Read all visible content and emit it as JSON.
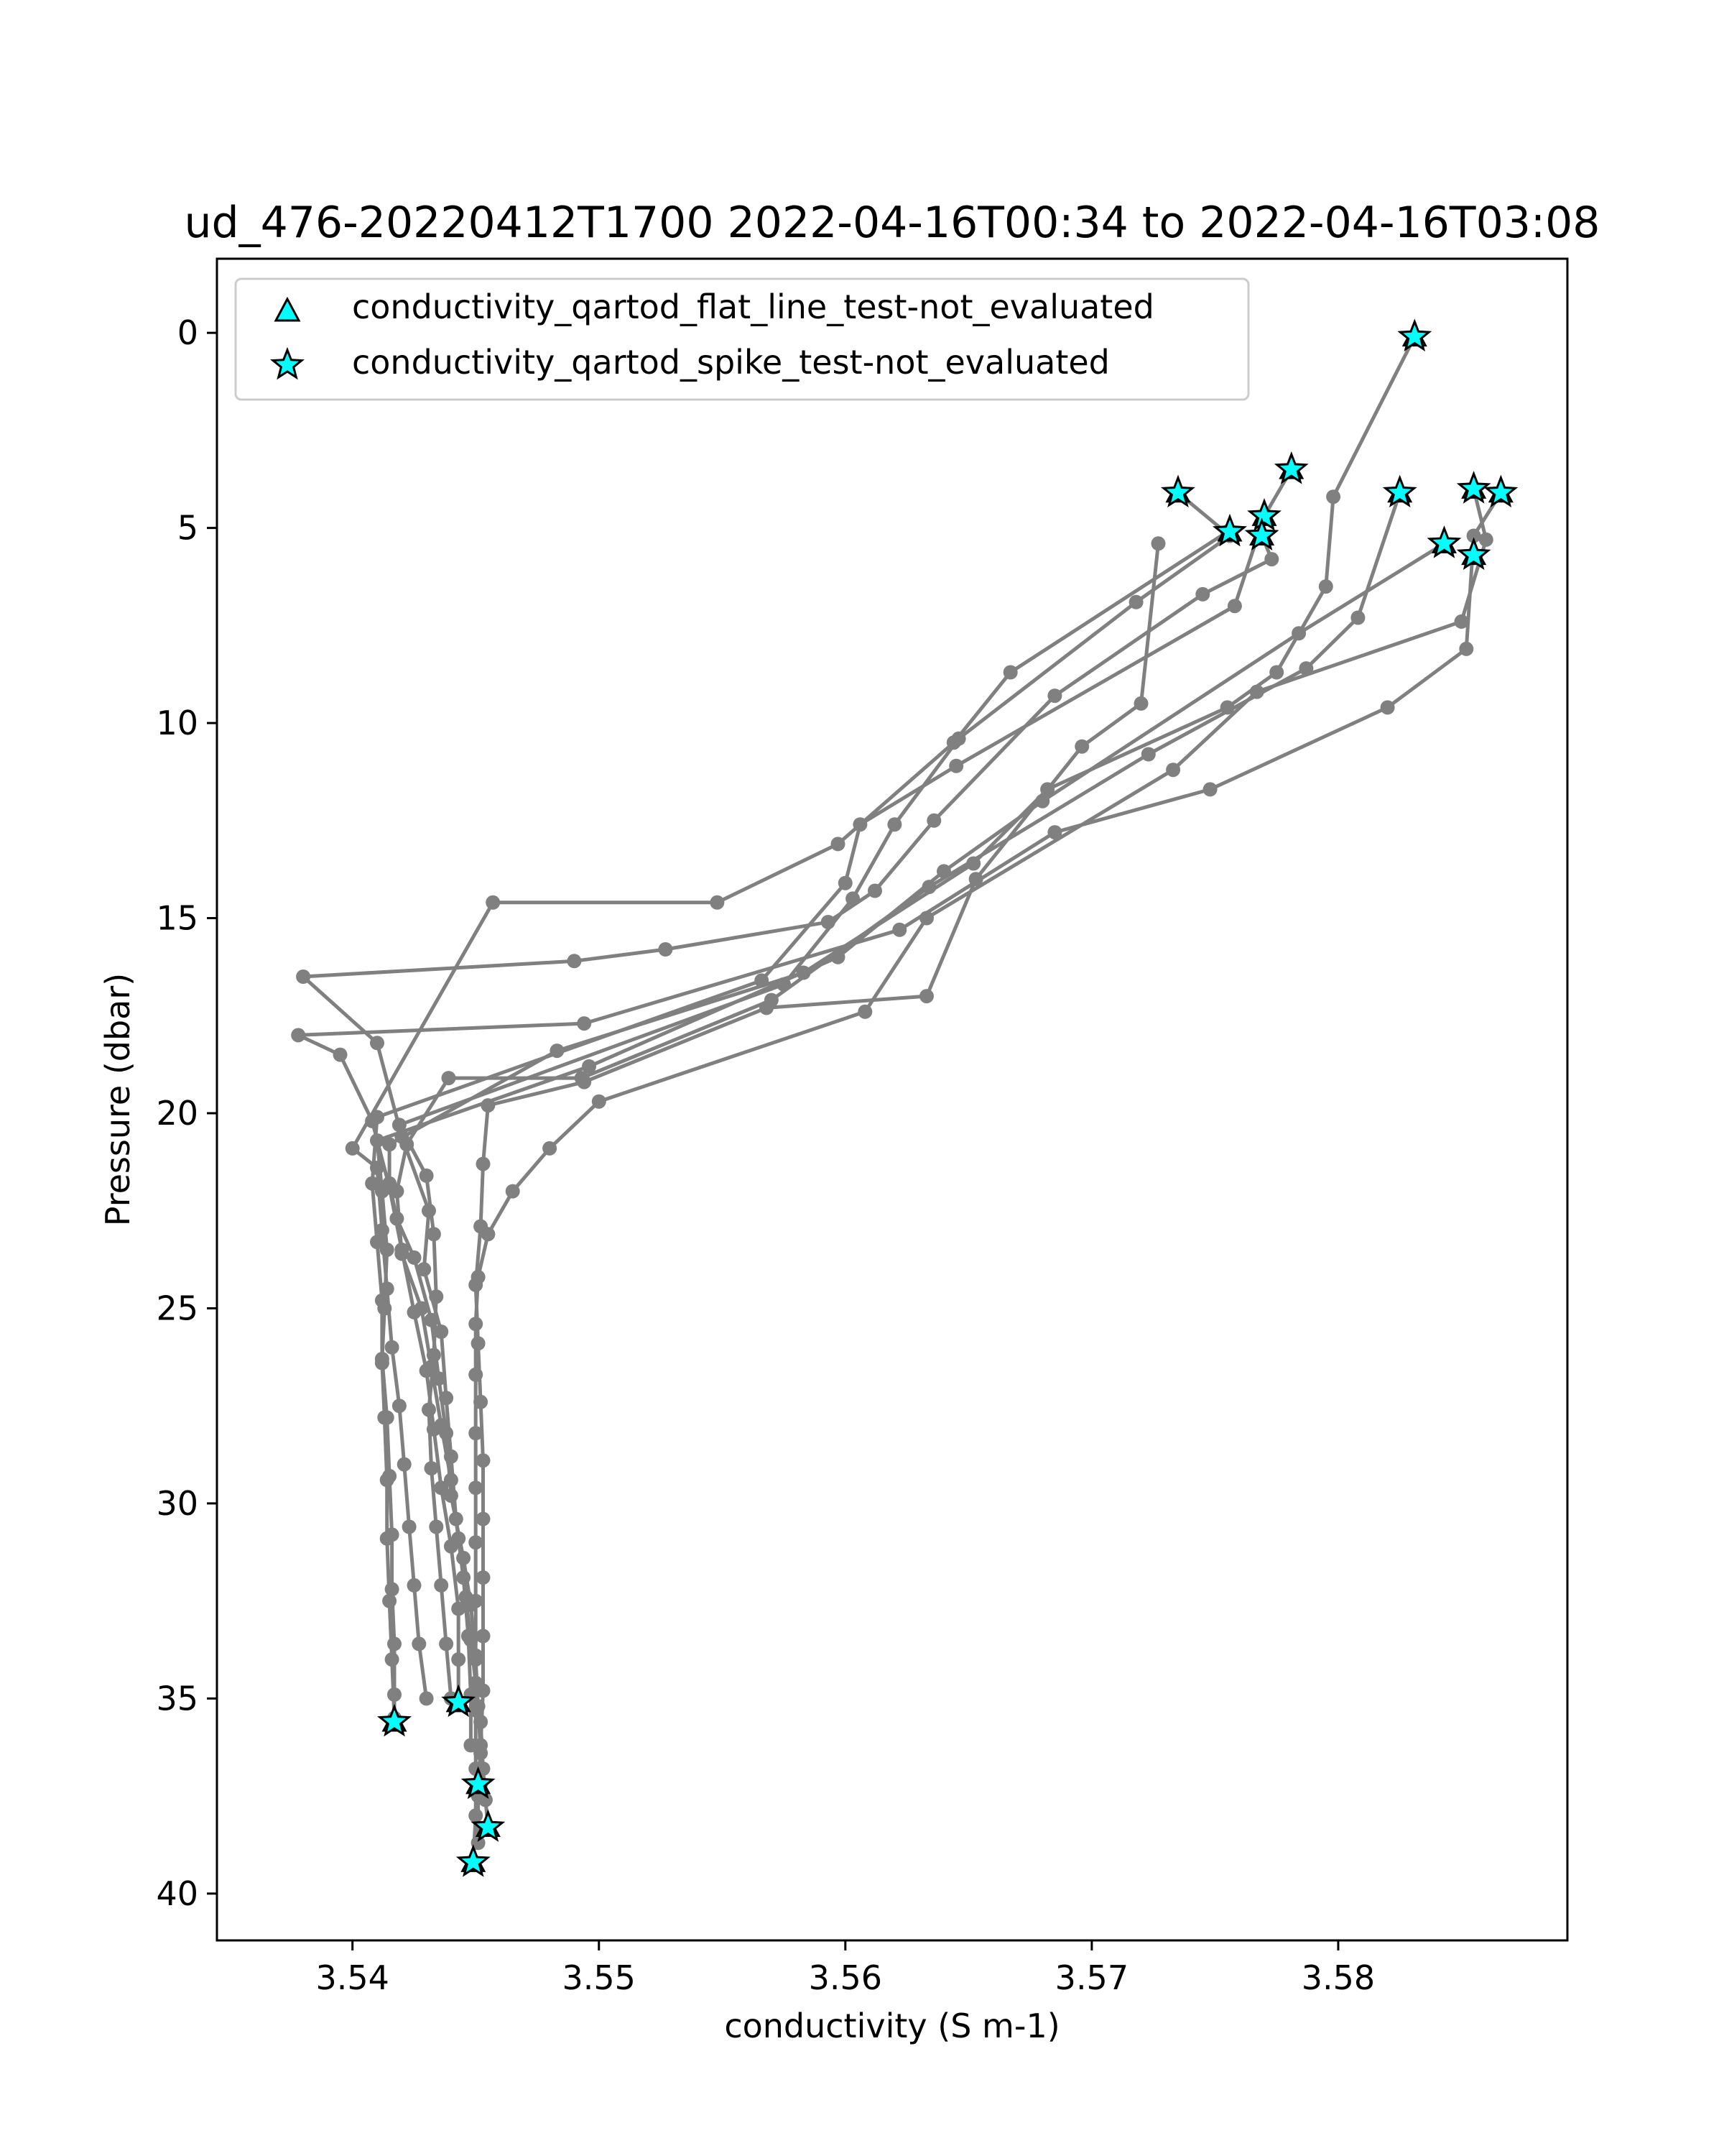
{
  "chart_data": {
    "type": "line",
    "title": "ud_476-20220412T1700 2022-04-16T00:34 to 2022-04-16T03:08",
    "xlabel": "conductivity (S m-1)",
    "ylabel": "Pressure (dbar)",
    "xlim": [
      3.5345,
      3.5893
    ],
    "ylim": [
      41.2,
      -1.9
    ],
    "y_inverted": true,
    "xticks": [
      3.54,
      3.55,
      3.56,
      3.57,
      3.58
    ],
    "xtick_labels": [
      "3.54",
      "3.55",
      "3.56",
      "3.57",
      "3.58"
    ],
    "yticks": [
      0,
      5,
      10,
      15,
      20,
      25,
      30,
      35,
      40
    ],
    "ytick_labels": [
      "0",
      "5",
      "10",
      "15",
      "20",
      "25",
      "30",
      "35",
      "40"
    ],
    "grid": false,
    "legend_position": "top-left",
    "colors": {
      "profile_line": "#808080",
      "flag_marker_fill": "#00ffff",
      "flag_marker_edge": "#000000",
      "axes": "#000000"
    },
    "legend": [
      {
        "label": "conductivity_qartod_flat_line_test-not_evaluated",
        "marker": "triangle"
      },
      {
        "label": "conductivity_qartod_spike_test-not_evaluated",
        "marker": "star"
      }
    ],
    "profiles": [
      {
        "points": [
          [
            3.5831,
            0.1
          ],
          [
            3.5798,
            4.2
          ],
          [
            3.5795,
            6.5
          ],
          [
            3.5775,
            8.7
          ],
          [
            3.5755,
            9.6
          ],
          [
            3.5682,
            11.7
          ],
          [
            3.5652,
            13.6
          ],
          [
            3.5583,
            16.4
          ],
          [
            3.5483,
            18.4
          ],
          [
            3.5415,
            20.8
          ],
          [
            3.5415,
            21.8
          ],
          [
            3.5418,
            22.7
          ],
          [
            3.5425,
            23.7
          ],
          [
            3.5432,
            25.3
          ],
          [
            3.5435,
            26.8
          ],
          [
            3.5438,
            28.2
          ],
          [
            3.544,
            29.8
          ],
          [
            3.5445,
            31.4
          ],
          [
            3.5448,
            32.6
          ],
          [
            3.545,
            34.0
          ],
          [
            3.5451,
            35.2
          ],
          [
            3.5452,
            36.4
          ],
          [
            3.5452,
            37.2
          ]
        ]
      },
      {
        "points": [
          [
            3.5825,
            4.1
          ],
          [
            3.5808,
            7.3
          ],
          [
            3.5787,
            8.6
          ],
          [
            3.5723,
            10.8
          ],
          [
            3.5634,
            14.2
          ],
          [
            3.557,
            17.1
          ],
          [
            3.5493,
            19.1
          ],
          [
            3.5439,
            19.1
          ],
          [
            3.5422,
            20.8
          ],
          [
            3.5418,
            22.0
          ],
          [
            3.542,
            23.6
          ],
          [
            3.5428,
            25.0
          ],
          [
            3.5432,
            26.5
          ],
          [
            3.5436,
            28.0
          ],
          [
            3.544,
            29.4
          ],
          [
            3.5443,
            30.9
          ],
          [
            3.5446,
            32.4
          ],
          [
            3.5448,
            33.5
          ],
          [
            3.545,
            34.6
          ],
          [
            3.5452,
            35.6
          ],
          [
            3.5453,
            36.8
          ],
          [
            3.5454,
            37.6
          ],
          [
            3.5455,
            38.3
          ]
        ]
      },
      {
        "points": [
          [
            3.5855,
            4.0
          ],
          [
            3.586,
            5.3
          ],
          [
            3.585,
            7.4
          ],
          [
            3.5767,
            9.2
          ],
          [
            3.5733,
            11.2
          ],
          [
            3.5633,
            15.0
          ],
          [
            3.5608,
            17.4
          ],
          [
            3.55,
            19.7
          ],
          [
            3.548,
            20.9
          ],
          [
            3.5465,
            22.0
          ],
          [
            3.5455,
            23.1
          ],
          [
            3.5451,
            24.2
          ],
          [
            3.545,
            25.4
          ],
          [
            3.545,
            26.7
          ],
          [
            3.545,
            28.2
          ],
          [
            3.545,
            29.6
          ],
          [
            3.545,
            31.0
          ],
          [
            3.545,
            32.5
          ],
          [
            3.545,
            33.9
          ],
          [
            3.545,
            35.3
          ],
          [
            3.545,
            36.8
          ],
          [
            3.545,
            38.0
          ],
          [
            3.5449,
            39.2
          ]
        ]
      },
      {
        "points": [
          [
            3.5866,
            4.1
          ],
          [
            3.5855,
            5.2
          ],
          [
            3.5852,
            8.1
          ],
          [
            3.582,
            9.6
          ],
          [
            3.5748,
            11.7
          ],
          [
            3.5685,
            12.8
          ],
          [
            3.5622,
            15.3
          ],
          [
            3.5494,
            17.7
          ],
          [
            3.5378,
            18.0
          ],
          [
            3.5395,
            18.5
          ],
          [
            3.5408,
            20.2
          ],
          [
            3.5415,
            21.9
          ],
          [
            3.542,
            23.5
          ],
          [
            3.5425,
            25.1
          ],
          [
            3.543,
            26.6
          ],
          [
            3.5433,
            28.1
          ],
          [
            3.5436,
            29.6
          ],
          [
            3.544,
            31.1
          ],
          [
            3.5443,
            32.7
          ],
          [
            3.5443,
            34.0
          ],
          [
            3.5443,
            35.1
          ]
        ]
      },
      {
        "points": [
          [
            3.5843,
            5.4
          ],
          [
            3.5784,
            7.7
          ],
          [
            3.568,
            12.0
          ],
          [
            3.564,
            13.8
          ],
          [
            3.5597,
            16.0
          ],
          [
            3.5496,
            18.8
          ],
          [
            3.541,
            20.7
          ],
          [
            3.5412,
            22.0
          ],
          [
            3.5414,
            23.5
          ],
          [
            3.5413,
            25.0
          ],
          [
            3.5412,
            26.3
          ],
          [
            3.5414,
            27.8
          ],
          [
            3.5415,
            29.3
          ],
          [
            3.5416,
            30.8
          ],
          [
            3.5416,
            32.2
          ],
          [
            3.5417,
            33.6
          ],
          [
            3.5417,
            34.9
          ],
          [
            3.5417,
            35.6
          ]
        ]
      },
      {
        "points": [
          [
            3.5735,
            4.1
          ],
          [
            3.5756,
            5.2
          ],
          [
            3.5718,
            6.9
          ],
          [
            3.5646,
            10.4
          ],
          [
            3.562,
            12.6
          ],
          [
            3.5603,
            14.5
          ],
          [
            3.5575,
            16.7
          ],
          [
            3.5419,
            20.3
          ],
          [
            3.543,
            21.6
          ],
          [
            3.5433,
            23.1
          ],
          [
            3.5434,
            24.7
          ],
          [
            3.5433,
            26.2
          ],
          [
            3.5431,
            27.6
          ],
          [
            3.5432,
            29.1
          ],
          [
            3.5434,
            30.6
          ],
          [
            3.5436,
            32.1
          ],
          [
            3.5438,
            33.6
          ],
          [
            3.544,
            35.0
          ]
        ]
      },
      {
        "points": [
          [
            3.5781,
            3.5
          ],
          [
            3.577,
            4.7
          ],
          [
            3.5758,
            7.0
          ],
          [
            3.5645,
            11.1
          ],
          [
            3.5606,
            12.6
          ],
          [
            3.56,
            14.1
          ],
          [
            3.5566,
            16.6
          ],
          [
            3.541,
            20.1
          ],
          [
            3.5408,
            21.8
          ],
          [
            3.541,
            23.3
          ],
          [
            3.5412,
            24.8
          ],
          [
            3.5412,
            26.4
          ],
          [
            3.5413,
            27.8
          ],
          [
            3.5414,
            29.4
          ],
          [
            3.5414,
            30.9
          ],
          [
            3.5415,
            32.5
          ],
          [
            3.5416,
            34.0
          ],
          [
            3.5417,
            35.5
          ]
        ]
      },
      {
        "points": [
          [
            3.5769,
            5.2
          ],
          [
            3.5773,
            5.8
          ],
          [
            3.5745,
            6.7
          ],
          [
            3.5685,
            9.3
          ],
          [
            3.5636,
            12.5
          ],
          [
            3.5612,
            14.3
          ],
          [
            3.5593,
            15.1
          ],
          [
            3.5527,
            15.8
          ],
          [
            3.549,
            16.1
          ],
          [
            3.538,
            16.5
          ],
          [
            3.541,
            18.2
          ],
          [
            3.542,
            20.6
          ],
          [
            3.5431,
            22.5
          ],
          [
            3.5429,
            24.0
          ],
          [
            3.5436,
            25.6
          ],
          [
            3.5438,
            27.3
          ],
          [
            3.544,
            28.8
          ],
          [
            3.5442,
            30.4
          ],
          [
            3.5445,
            31.9
          ],
          [
            3.5447,
            33.4
          ],
          [
            3.5448,
            34.9
          ],
          [
            3.5448,
            36.2
          ]
        ]
      },
      {
        "points": [
          [
            3.5727,
            5.4
          ],
          [
            3.572,
            9.5
          ],
          [
            3.5696,
            10.6
          ],
          [
            3.5653,
            14.0
          ],
          [
            3.5633,
            17.0
          ],
          [
            3.5568,
            17.3
          ],
          [
            3.5494,
            19.2
          ],
          [
            3.5455,
            19.8
          ],
          [
            3.5453,
            21.3
          ],
          [
            3.5452,
            22.9
          ],
          [
            3.545,
            24.4
          ],
          [
            3.5451,
            25.9
          ],
          [
            3.5452,
            27.4
          ],
          [
            3.5453,
            28.9
          ],
          [
            3.5453,
            30.4
          ],
          [
            3.5453,
            31.9
          ],
          [
            3.5453,
            33.4
          ],
          [
            3.5453,
            34.8
          ],
          [
            3.5452,
            36.2
          ],
          [
            3.5451,
            37.5
          ],
          [
            3.5451,
            38.7
          ]
        ]
      },
      {
        "points": [
          [
            3.5755,
            5.1
          ],
          [
            3.5667,
            8.7
          ],
          [
            3.5644,
            10.5
          ],
          [
            3.5597,
            13.1
          ],
          [
            3.5548,
            14.6
          ],
          [
            3.5457,
            14.6
          ],
          [
            3.54,
            20.9
          ],
          [
            3.541,
            21.4
          ],
          [
            3.5412,
            23.0
          ],
          [
            3.5414,
            24.5
          ],
          [
            3.5416,
            26.0
          ],
          [
            3.5419,
            27.5
          ],
          [
            3.5421,
            29.0
          ],
          [
            3.5423,
            30.6
          ],
          [
            3.5425,
            32.1
          ],
          [
            3.5427,
            33.6
          ],
          [
            3.543,
            35.0
          ]
        ]
      }
    ],
    "spike_flagged_points": [
      [
        3.5831,
        0.1
      ],
      [
        3.5781,
        3.5
      ],
      [
        3.5735,
        4.1
      ],
      [
        3.5825,
        4.1
      ],
      [
        3.5855,
        4.0
      ],
      [
        3.5866,
        4.1
      ],
      [
        3.577,
        4.7
      ],
      [
        3.5756,
        5.1
      ],
      [
        3.5769,
        5.2
      ],
      [
        3.5843,
        5.4
      ],
      [
        3.5855,
        5.7
      ],
      [
        3.5443,
        35.1
      ],
      [
        3.5417,
        35.6
      ],
      [
        3.5451,
        37.2
      ],
      [
        3.5455,
        38.3
      ],
      [
        3.5449,
        39.2
      ]
    ],
    "flat_line_flagged_points": [
      [
        3.5831,
        0.1
      ],
      [
        3.5781,
        3.5
      ],
      [
        3.5735,
        4.1
      ],
      [
        3.5825,
        4.1
      ],
      [
        3.5855,
        4.0
      ],
      [
        3.5866,
        4.1
      ],
      [
        3.577,
        4.7
      ],
      [
        3.5756,
        5.1
      ],
      [
        3.5769,
        5.2
      ],
      [
        3.5843,
        5.4
      ],
      [
        3.5855,
        5.7
      ],
      [
        3.5443,
        35.1
      ],
      [
        3.5417,
        35.6
      ],
      [
        3.5451,
        37.2
      ],
      [
        3.5455,
        38.3
      ],
      [
        3.5449,
        39.2
      ]
    ]
  }
}
